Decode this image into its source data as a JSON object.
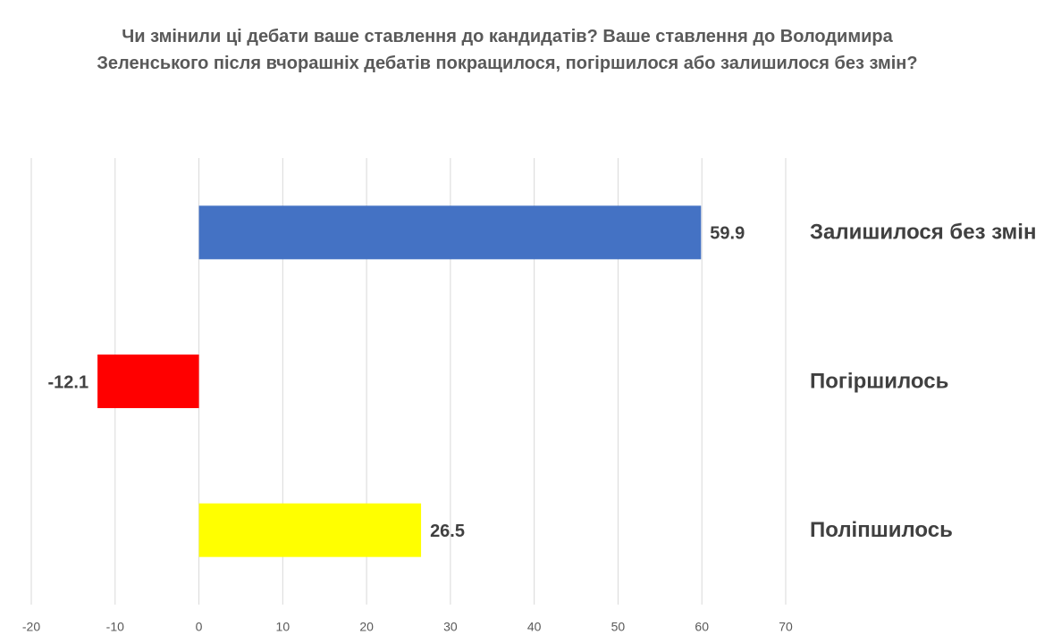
{
  "chart_data": {
    "type": "bar",
    "orientation": "horizontal",
    "title": "Чи змінили ці дебати ваше ставлення до кандидатів? Ваше ставлення до Володимира Зеленського після вчорашніх дебатів покращилося, погіршилося або залишилося без змін?",
    "categories": [
      "Залишилося без змін",
      "Погіршилось",
      "Поліпшилось"
    ],
    "values": [
      59.9,
      -12.1,
      26.5
    ],
    "colors": [
      "#4472c4",
      "#ff0000",
      "#ffff00"
    ],
    "xlim": [
      -20,
      70
    ],
    "xticks": [
      -20,
      -10,
      0,
      10,
      20,
      30,
      40,
      50,
      60,
      70
    ],
    "grid": true
  }
}
